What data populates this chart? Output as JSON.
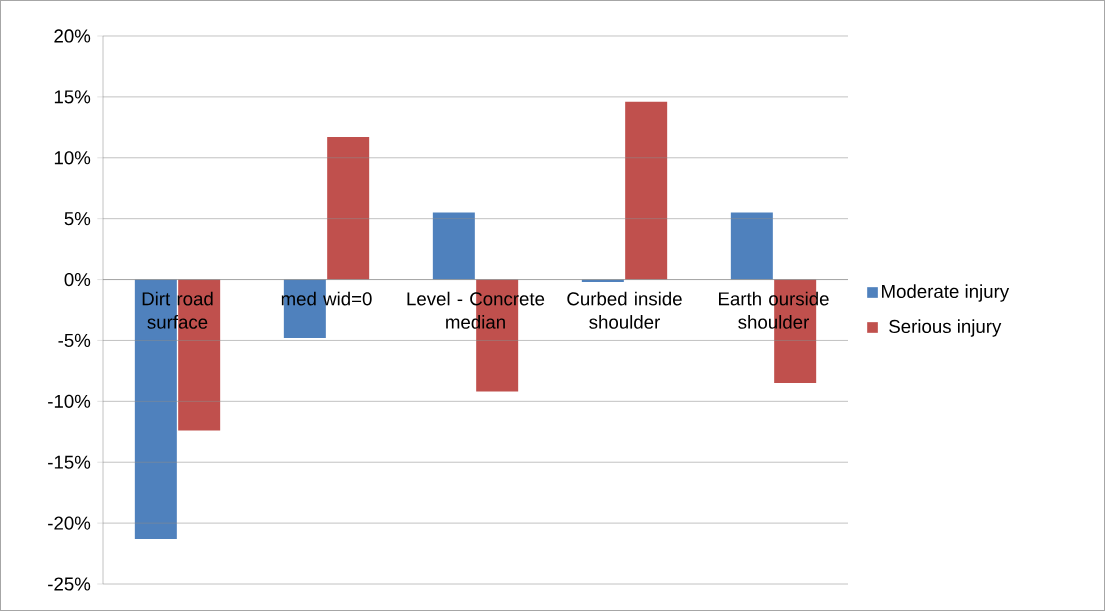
{
  "chart_data": {
    "type": "bar",
    "categories": [
      "Dirt road surface",
      "med wid=0",
      "Level - Concrete median",
      "Curbed inside shoulder",
      "Earth ourside shoulder"
    ],
    "series": [
      {
        "name": "Moderate injury",
        "color": "#4f81bd",
        "values": [
          -21.3,
          -4.8,
          5.5,
          -0.2,
          5.5
        ]
      },
      {
        "name": "Serious injury",
        "color": "#c0504d",
        "values": [
          -12.4,
          11.7,
          -9.2,
          14.6,
          -8.5
        ]
      }
    ],
    "ylim": [
      -25,
      20
    ],
    "yticks": [
      {
        "value": -25,
        "label": "-25%"
      },
      {
        "value": -20,
        "label": "-20%"
      },
      {
        "value": -15,
        "label": "-15%"
      },
      {
        "value": -10,
        "label": "-10%"
      },
      {
        "value": -5,
        "label": "-5%"
      },
      {
        "value": 0,
        "label": "0%"
      },
      {
        "value": 5,
        "label": "5%"
      },
      {
        "value": 10,
        "label": "10%"
      },
      {
        "value": 15,
        "label": "15%"
      },
      {
        "value": 20,
        "label": "20%"
      }
    ],
    "grid": "y",
    "legend": "right"
  }
}
